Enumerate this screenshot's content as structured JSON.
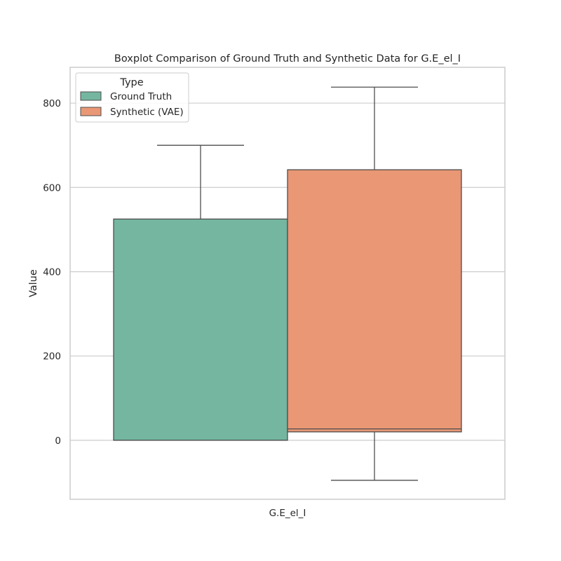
{
  "chart_data": {
    "type": "box",
    "title": "Boxplot Comparison of Ground Truth and Synthetic Data for G.E_el_I",
    "xlabel": "",
    "ylabel": "Value",
    "categories": [
      "G.E_el_I"
    ],
    "ylim": [
      -140,
      885
    ],
    "yticks": [
      0,
      200,
      400,
      600,
      800
    ],
    "grid": true,
    "legend": {
      "title": "Type",
      "placement": "top-left"
    },
    "series": [
      {
        "name": "Ground Truth",
        "color": "#74b6a0",
        "whisker_low": 0,
        "q1": 0,
        "median": 0,
        "q3": 525,
        "whisker_high": 700
      },
      {
        "name": "Synthetic (VAE)",
        "color": "#e99775",
        "whisker_low": -95,
        "q1": 20,
        "median": 27,
        "q3": 642,
        "whisker_high": 838
      }
    ]
  }
}
